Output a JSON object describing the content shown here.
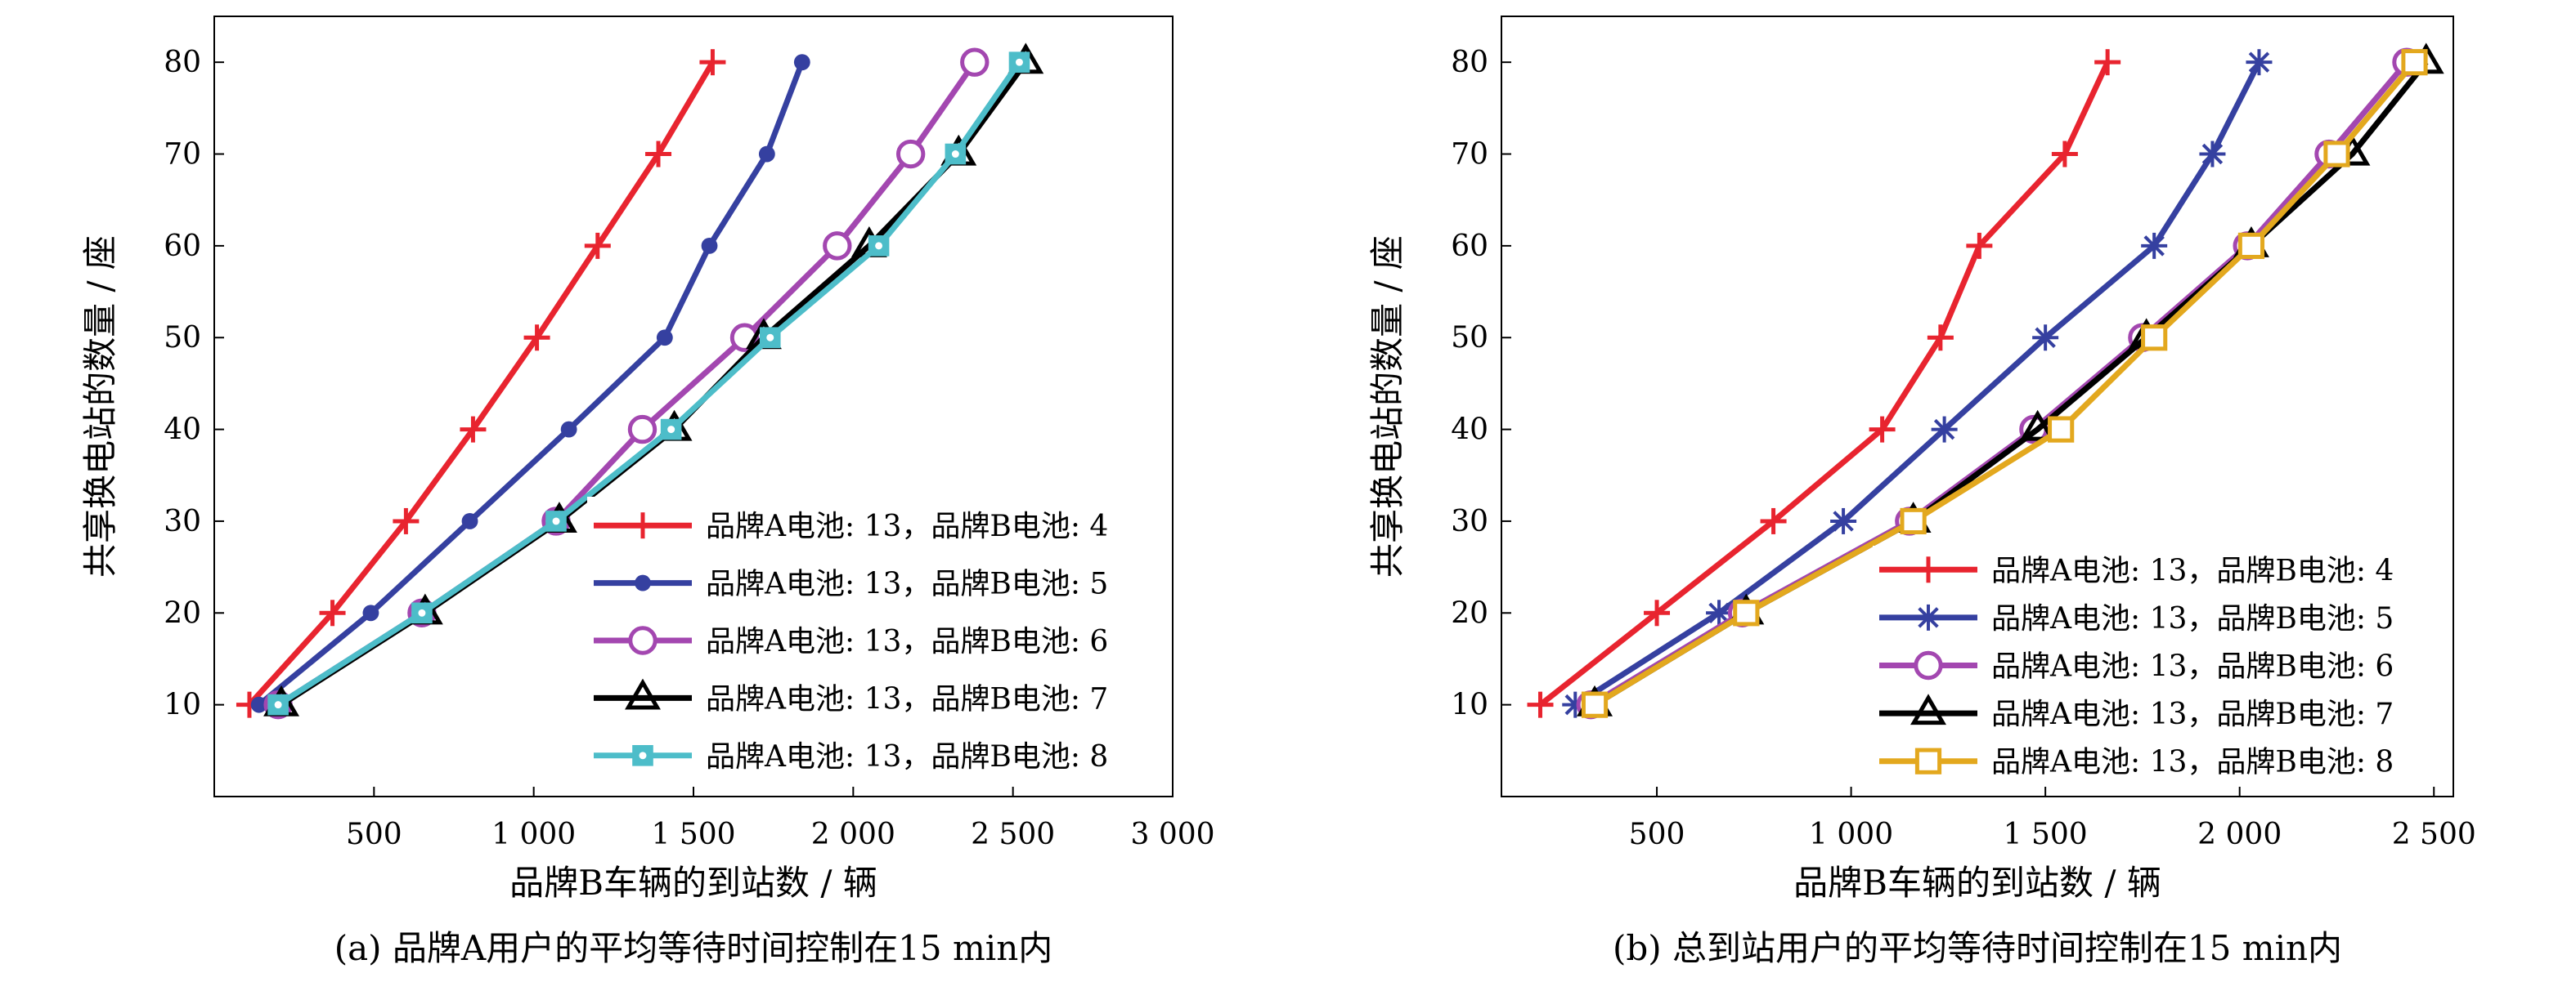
{
  "colors": {
    "red": "#e8242f",
    "blue": "#3540a0",
    "purple": "#a347b0",
    "black": "#000000",
    "cyan": "#4dbdc9",
    "gold": "#e3a81e"
  },
  "chart_data": [
    {
      "type": "line",
      "caption": "(a) 品牌A用户的平均等待时间控制在15 min内",
      "xlabel": "品牌B车辆的到站数 / 辆",
      "ylabel": "共享换电站的数量 / 座",
      "xlim": [
        0,
        3000
      ],
      "ylim": [
        0,
        85
      ],
      "xticks": [
        500,
        1000,
        1500,
        2000,
        2500,
        3000
      ],
      "xtick_labels": [
        "500",
        "1 000",
        "1 500",
        "2 000",
        "2 500",
        "3 000"
      ],
      "yticks": [
        10,
        20,
        30,
        40,
        50,
        60,
        70,
        80
      ],
      "ytick_labels": [
        "10",
        "20",
        "30",
        "40",
        "50",
        "60",
        "70",
        "80"
      ],
      "legend_position": "bottom-right",
      "series": [
        {
          "name": "品牌A电池: 13，品牌B电池: 4",
          "color": "#e8242f",
          "marker": "plus",
          "x": [
            110,
            370,
            600,
            810,
            1010,
            1200,
            1390,
            1560
          ],
          "y": [
            10,
            20,
            30,
            40,
            50,
            60,
            70,
            80
          ]
        },
        {
          "name": "品牌A电池: 13，品牌B电池: 5",
          "color": "#3540a0",
          "marker": "dot",
          "x": [
            140,
            490,
            800,
            1110,
            1410,
            1550,
            1730,
            1840
          ],
          "y": [
            10,
            20,
            30,
            40,
            50,
            60,
            70,
            80
          ]
        },
        {
          "name": "品牌A电池: 13，品牌B电池: 6",
          "color": "#a347b0",
          "marker": "circle",
          "x": [
            200,
            650,
            1070,
            1340,
            1660,
            1950,
            2180,
            2380
          ],
          "y": [
            10,
            20,
            30,
            40,
            50,
            60,
            70,
            80
          ]
        },
        {
          "name": "品牌A电池: 13，品牌B电池: 7",
          "color": "#000000",
          "marker": "triangle",
          "x": [
            210,
            660,
            1080,
            1440,
            1720,
            2050,
            2330,
            2540
          ],
          "y": [
            10,
            20,
            30,
            40,
            50,
            60,
            70,
            80
          ]
        },
        {
          "name": "品牌A电池: 13，品牌B电池: 8",
          "color": "#4dbdc9",
          "marker": "square-dot",
          "x": [
            200,
            650,
            1070,
            1430,
            1740,
            2080,
            2320,
            2520
          ],
          "y": [
            10,
            20,
            30,
            40,
            50,
            60,
            70,
            80
          ]
        }
      ]
    },
    {
      "type": "line",
      "caption": "(b) 总到站用户的平均等待时间控制在15 min内",
      "xlabel": "品牌B车辆的到站数 / 辆",
      "ylabel": "共享换电站的数量 / 座",
      "xlim": [
        100,
        2550
      ],
      "ylim": [
        0,
        85
      ],
      "xticks": [
        500,
        1000,
        1500,
        2000,
        2500
      ],
      "xtick_labels": [
        "500",
        "1 000",
        "1 500",
        "2 000",
        "2 500"
      ],
      "yticks": [
        10,
        20,
        30,
        40,
        50,
        60,
        70,
        80
      ],
      "ytick_labels": [
        "10",
        "20",
        "30",
        "40",
        "50",
        "60",
        "70",
        "80"
      ],
      "legend_position": "bottom-right",
      "series": [
        {
          "name": "品牌A电池: 13，品牌B电池: 4",
          "color": "#e8242f",
          "marker": "plus",
          "x": [
            200,
            500,
            800,
            1080,
            1230,
            1330,
            1550,
            1660
          ],
          "y": [
            10,
            20,
            30,
            40,
            50,
            60,
            70,
            80
          ]
        },
        {
          "name": "品牌A电池: 13，品牌B电池: 5",
          "color": "#3540a0",
          "marker": "asterisk",
          "x": [
            290,
            660,
            980,
            1240,
            1500,
            1780,
            1930,
            2050
          ],
          "y": [
            10,
            20,
            30,
            40,
            50,
            60,
            70,
            80
          ]
        },
        {
          "name": "品牌A电池: 13，品牌B电池: 6",
          "color": "#a347b0",
          "marker": "circle",
          "x": [
            330,
            720,
            1150,
            1470,
            1750,
            2020,
            2230,
            2430
          ],
          "y": [
            10,
            20,
            30,
            40,
            50,
            60,
            70,
            80
          ]
        },
        {
          "name": "品牌A电池: 13，品牌B电池: 7",
          "color": "#000000",
          "marker": "triangle",
          "x": [
            340,
            730,
            1160,
            1480,
            1760,
            2030,
            2290,
            2480
          ],
          "y": [
            10,
            20,
            30,
            40,
            50,
            60,
            70,
            80
          ]
        },
        {
          "name": "品牌A电池: 13，品牌B电池: 8",
          "color": "#e3a81e",
          "marker": "square",
          "x": [
            340,
            730,
            1160,
            1540,
            1780,
            2030,
            2250,
            2450
          ],
          "y": [
            10,
            20,
            30,
            40,
            50,
            60,
            70,
            80
          ]
        }
      ]
    }
  ]
}
